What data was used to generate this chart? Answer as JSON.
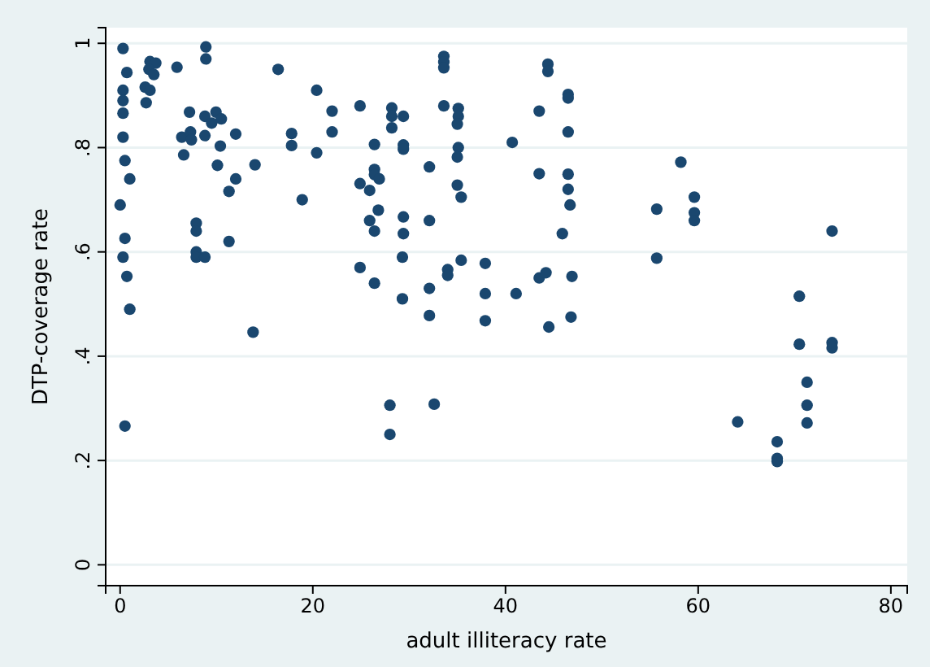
{
  "chart_data": {
    "type": "scatter",
    "xlabel": "adult illiteracy rate",
    "ylabel": "DTP-coverage rate",
    "xlim": [
      -1.5,
      81.7
    ],
    "ylim": [
      -0.04,
      1.03
    ],
    "xticks": [
      0,
      20,
      40,
      60,
      80
    ],
    "yticks": [
      0,
      {
        "value": 0.2,
        "label": ".2"
      },
      {
        "value": 0.4,
        "label": ".4"
      },
      {
        "value": 0.6,
        "label": ".6"
      },
      {
        "value": 0.8,
        "label": ".8"
      },
      1
    ],
    "grid": "y",
    "marker": "circle",
    "series": [
      {
        "color": "#1a476f",
        "x": [
          0.3,
          0.7,
          0.3,
          0.3,
          0.3,
          0.3,
          0.5,
          1,
          0,
          0.5,
          0.3,
          0.7,
          1,
          0.5,
          3.1,
          3.7,
          3,
          3.5,
          2.6,
          3.1,
          2.7,
          5.9,
          8.9,
          8.9,
          7.2,
          8.8,
          9.95,
          9.5,
          10.5,
          6.4,
          7.3,
          7.4,
          8.8,
          12,
          10.4,
          6.6,
          10.1,
          14,
          12,
          11.3,
          7.9,
          7.9,
          11.3,
          7.9,
          7.9,
          8.8,
          13.8,
          16.4,
          20.4,
          22,
          22,
          17.8,
          17.8,
          20.4,
          18.9,
          24.9,
          28.2,
          28.2,
          29.4,
          28.2,
          26.4,
          29.4,
          29.4,
          33.6,
          33.6,
          33.6,
          33.6,
          35.1,
          35.1,
          35,
          35.1,
          35,
          40.7,
          44.4,
          44.4,
          43.5,
          46.5,
          46.5,
          46.5,
          26.4,
          26.4,
          26.9,
          24.9,
          25.9,
          32.1,
          35,
          35.4,
          43.5,
          46.5,
          46.5,
          46.7,
          45.9,
          26.8,
          25.9,
          26.4,
          29.4,
          29.4,
          32.1,
          29.3,
          24.9,
          26.4,
          29.3,
          32.1,
          32.1,
          34,
          34,
          35.4,
          37.9,
          37.9,
          41.1,
          37.9,
          43.5,
          44.2,
          46.9,
          46.8,
          44.5,
          28,
          32.6,
          28,
          58.2,
          59.6,
          55.7,
          59.6,
          59.6,
          73.9,
          55.7,
          70.5,
          70.5,
          73.9,
          73.9,
          71.3,
          71.3,
          71.3,
          64.1,
          68.2,
          68.2,
          68.2
        ],
        "values": [
          0.99,
          0.944,
          0.91,
          0.89,
          0.866,
          0.82,
          0.775,
          0.74,
          0.69,
          0.626,
          0.59,
          0.553,
          0.49,
          0.266,
          0.965,
          0.962,
          0.95,
          0.94,
          0.916,
          0.91,
          0.886,
          0.954,
          0.993,
          0.97,
          0.868,
          0.86,
          0.868,
          0.847,
          0.855,
          0.82,
          0.83,
          0.815,
          0.823,
          0.826,
          0.803,
          0.786,
          0.766,
          0.767,
          0.74,
          0.716,
          0.655,
          0.64,
          0.62,
          0.6,
          0.59,
          0.59,
          0.446,
          0.95,
          0.91,
          0.87,
          0.83,
          0.827,
          0.804,
          0.79,
          0.7,
          0.88,
          0.876,
          0.86,
          0.86,
          0.838,
          0.806,
          0.805,
          0.797,
          0.975,
          0.964,
          0.953,
          0.88,
          0.875,
          0.86,
          0.845,
          0.8,
          0.782,
          0.81,
          0.96,
          0.946,
          0.87,
          0.902,
          0.895,
          0.83,
          0.758,
          0.748,
          0.74,
          0.731,
          0.718,
          0.763,
          0.728,
          0.705,
          0.75,
          0.749,
          0.72,
          0.69,
          0.635,
          0.68,
          0.66,
          0.64,
          0.667,
          0.635,
          0.66,
          0.59,
          0.57,
          0.54,
          0.51,
          0.53,
          0.478,
          0.566,
          0.555,
          0.584,
          0.578,
          0.52,
          0.52,
          0.468,
          0.55,
          0.56,
          0.553,
          0.475,
          0.456,
          0.306,
          0.308,
          0.25,
          0.772,
          0.705,
          0.682,
          0.675,
          0.66,
          0.64,
          0.588,
          0.515,
          0.423,
          0.426,
          0.416,
          0.35,
          0.306,
          0.272,
          0.274,
          0.236,
          0.204,
          0.198
        ]
      }
    ]
  }
}
